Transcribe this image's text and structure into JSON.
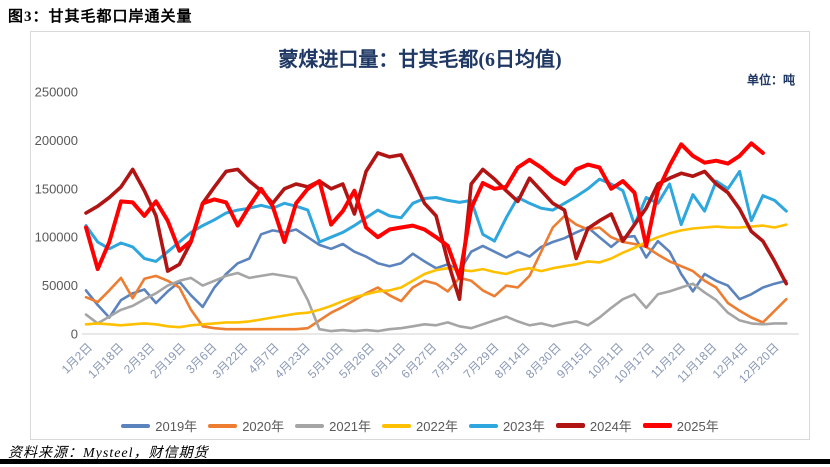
{
  "header": {
    "title": "图3：甘其毛都口岸通关量"
  },
  "footer": {
    "source_text": "资料来源：Mysteel，财信期货"
  },
  "chart_data": {
    "type": "line",
    "title": "蒙煤进口量：甘其毛都(6日均值)",
    "unit_label": "单位：吨",
    "xlabel": "",
    "ylabel": "",
    "ylim": [
      0,
      250000
    ],
    "y_ticks": [
      0,
      50000,
      100000,
      150000,
      200000,
      250000
    ],
    "grid": false,
    "legend_position": "bottom",
    "x_unit": "day_of_year",
    "day_start": 1,
    "day_step": 6,
    "days_in_year": 366,
    "styles": {
      "title_color": "#1f3864",
      "y_label_color": "#595959",
      "x_label_color": "#8a98b4",
      "axis_line_color": "#d9d9d9",
      "panel_border_color": "#d9d9d9"
    },
    "x_ticks": [
      {
        "day": 2,
        "label": "1月2日"
      },
      {
        "day": 18,
        "label": "1月18日"
      },
      {
        "day": 34,
        "label": "2月3日"
      },
      {
        "day": 50,
        "label": "2月19日"
      },
      {
        "day": 66,
        "label": "3月6日"
      },
      {
        "day": 82,
        "label": "3月22日"
      },
      {
        "day": 98,
        "label": "4月7日"
      },
      {
        "day": 114,
        "label": "4月23日"
      },
      {
        "day": 131,
        "label": "5月10日"
      },
      {
        "day": 147,
        "label": "5月26日"
      },
      {
        "day": 163,
        "label": "6月11日"
      },
      {
        "day": 179,
        "label": "6月27日"
      },
      {
        "day": 195,
        "label": "7月13日"
      },
      {
        "day": 211,
        "label": "7月29日"
      },
      {
        "day": 227,
        "label": "8月14日"
      },
      {
        "day": 243,
        "label": "8月30日"
      },
      {
        "day": 259,
        "label": "9月15日"
      },
      {
        "day": 275,
        "label": "10月1日"
      },
      {
        "day": 291,
        "label": "10月17日"
      },
      {
        "day": 307,
        "label": "11月2日"
      },
      {
        "day": 323,
        "label": "11月18日"
      },
      {
        "day": 339,
        "label": "12月4日"
      },
      {
        "day": 355,
        "label": "12月20日"
      }
    ],
    "series": [
      {
        "name": "2019",
        "label": "2019年",
        "color": "#5b83bd",
        "width": 2.6,
        "values": [
          45000,
          30000,
          17000,
          35000,
          42000,
          46000,
          32000,
          44000,
          54000,
          40000,
          28000,
          48000,
          62000,
          73000,
          78000,
          103000,
          107000,
          105000,
          108000,
          100000,
          92000,
          88000,
          93000,
          85000,
          80000,
          73000,
          70000,
          73000,
          83000,
          75000,
          68000,
          72000,
          65000,
          85000,
          91000,
          85000,
          79000,
          85000,
          80000,
          90000,
          95000,
          99000,
          105000,
          110000,
          100000,
          90000,
          100000,
          101000,
          79000,
          96000,
          85000,
          62000,
          44000,
          62000,
          55000,
          50000,
          36000,
          41000,
          48000,
          52000,
          55000
        ]
      },
      {
        "name": "2020",
        "label": "2020年",
        "color": "#ed7d31",
        "width": 2.6,
        "values": [
          38000,
          33000,
          45000,
          58000,
          37000,
          57000,
          60000,
          55000,
          48000,
          25000,
          8000,
          6000,
          5000,
          5000,
          5000,
          5000,
          5000,
          5000,
          5000,
          6000,
          14000,
          22000,
          28000,
          35000,
          42000,
          48000,
          40000,
          34000,
          48000,
          55000,
          52000,
          44000,
          58000,
          55000,
          45000,
          39000,
          50000,
          48000,
          60000,
          85000,
          110000,
          122000,
          113000,
          108000,
          110000,
          100000,
          95000,
          93000,
          90000,
          82000,
          75000,
          70000,
          65000,
          55000,
          48000,
          32000,
          24000,
          17000,
          12000,
          24000,
          36000
        ]
      },
      {
        "name": "2021",
        "label": "2021年",
        "color": "#a5a5a5",
        "width": 2.6,
        "values": [
          20000,
          11000,
          18000,
          25000,
          29000,
          36000,
          42000,
          50000,
          55000,
          58000,
          50000,
          55000,
          60000,
          63000,
          58000,
          60000,
          62000,
          60000,
          58000,
          35000,
          5000,
          3000,
          4000,
          3000,
          4000,
          3000,
          5000,
          6000,
          8000,
          10000,
          9000,
          12000,
          8000,
          6000,
          10000,
          14000,
          18000,
          13000,
          9000,
          11000,
          8000,
          11000,
          13000,
          9000,
          17000,
          27000,
          36000,
          41000,
          27000,
          41000,
          44000,
          48000,
          52000,
          43000,
          35000,
          22000,
          14000,
          11000,
          10000,
          11000,
          11000
        ]
      },
      {
        "name": "2022",
        "label": "2022年",
        "color": "#ffc000",
        "width": 2.6,
        "values": [
          10000,
          11000,
          10000,
          9000,
          10000,
          11000,
          10000,
          8000,
          7000,
          9000,
          10000,
          11000,
          12000,
          12000,
          13000,
          15000,
          17000,
          19000,
          21000,
          22000,
          25000,
          29000,
          34000,
          38000,
          41000,
          44000,
          45000,
          48000,
          55000,
          62000,
          66000,
          68000,
          66000,
          65000,
          67000,
          64000,
          62000,
          66000,
          68000,
          65000,
          68000,
          70000,
          72000,
          75000,
          74000,
          78000,
          84000,
          89000,
          95000,
          100000,
          104000,
          107000,
          109000,
          110000,
          111000,
          110000,
          110000,
          111000,
          112000,
          110000,
          113000
        ]
      },
      {
        "name": "2023",
        "label": "2023年",
        "color": "#2ea6de",
        "width": 3,
        "values": [
          112000,
          95000,
          88000,
          94000,
          90000,
          78000,
          75000,
          85000,
          95000,
          105000,
          112000,
          118000,
          125000,
          128000,
          130000,
          133000,
          130000,
          135000,
          132000,
          128000,
          95000,
          100000,
          105000,
          112000,
          120000,
          128000,
          122000,
          120000,
          135000,
          140000,
          141000,
          138000,
          136000,
          138000,
          103000,
          96000,
          120000,
          141000,
          135000,
          130000,
          128000,
          135000,
          142000,
          150000,
          160000,
          155000,
          148000,
          113000,
          141000,
          135000,
          155000,
          113000,
          144000,
          127000,
          158000,
          150000,
          168000,
          117000,
          143000,
          138000,
          127000
        ]
      },
      {
        "name": "2024",
        "label": "2024年",
        "color": "#b01413",
        "width": 3.6,
        "values": [
          125000,
          132000,
          141000,
          152000,
          170000,
          148000,
          122000,
          65000,
          72000,
          95000,
          135000,
          152000,
          168000,
          170000,
          158000,
          148000,
          135000,
          150000,
          155000,
          152000,
          158000,
          150000,
          155000,
          124000,
          168000,
          187000,
          183000,
          185000,
          161000,
          135000,
          122000,
          75000,
          36000,
          155000,
          170000,
          160000,
          148000,
          137000,
          161000,
          148000,
          135000,
          128000,
          78000,
          109000,
          117000,
          124000,
          96000,
          113000,
          130000,
          155000,
          161000,
          166000,
          163000,
          168000,
          155000,
          146000,
          129000,
          106000,
          96000,
          75000,
          52000
        ]
      },
      {
        "name": "2025",
        "label": "2025年",
        "color": "#ff0000",
        "width": 4,
        "values": [
          110000,
          67000,
          95000,
          137000,
          136000,
          122000,
          137000,
          117000,
          86000,
          96000,
          135000,
          139000,
          136000,
          112000,
          132000,
          150000,
          132000,
          95000,
          135000,
          150000,
          158000,
          113000,
          127000,
          148000,
          110000,
          100000,
          108000,
          110000,
          112000,
          108000,
          100000,
          91000,
          58000,
          130000,
          156000,
          150000,
          152000,
          172000,
          180000,
          172000,
          162000,
          155000,
          170000,
          175000,
          172000,
          150000,
          158000,
          146000,
          91000,
          148000,
          174000,
          196000,
          184000,
          177000,
          179000,
          176000,
          184000,
          197000,
          187000,
          null,
          null
        ]
      }
    ]
  }
}
